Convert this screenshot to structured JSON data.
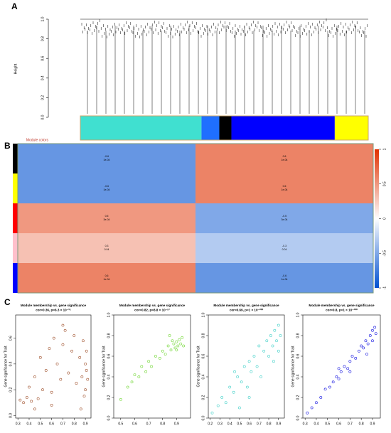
{
  "panel_labels": [
    "A",
    "B",
    "C"
  ],
  "chart_data": [
    {
      "type": "dendrogram",
      "ylabel": "Height",
      "color_label": "Module colors",
      "ylim": [
        0,
        1
      ],
      "yticks": [
        {
          "value": 0,
          "label": "0.0"
        },
        0.2,
        0.4,
        0.6,
        0.8,
        {
          "value": 1,
          "label": "1.0"
        }
      ],
      "modules": [
        {
          "color": "#40e0d0",
          "size": 850
        },
        {
          "color": "#1f6fff",
          "size": 125
        },
        {
          "color": "#000000",
          "size": 85
        },
        {
          "color": "#0000ff",
          "size": 725
        },
        {
          "color": "#ffff00",
          "size": 235
        }
      ]
    },
    {
      "type": "heatmap",
      "row_colors": [
        "#000000",
        "#ffff00",
        "#ff0000",
        "#ffc0cb",
        "#0000ff"
      ],
      "values": [
        [
          -0.6,
          0.6
        ],
        [
          -0.6,
          0.6
        ],
        [
          0.5,
          -0.5
        ],
        [
          0.3,
          -0.3
        ],
        [
          0.6,
          -0.6
        ]
      ],
      "p_labels": [
        [
          "1e-04",
          "1e-04"
        ],
        [
          "1e-04",
          "1e-04"
        ],
        [
          "3e-04",
          "3e-04"
        ],
        [
          "0.04",
          "0.04"
        ],
        [
          "1e-04",
          "1e-04"
        ]
      ],
      "colorscale": [
        "#0050d0",
        "#ffffff",
        "#e03000"
      ],
      "clim": [
        -1,
        1
      ],
      "cticks": [
        1,
        0.5,
        0,
        -0.5,
        -1
      ]
    },
    {
      "type": "scatter",
      "title": "Module membership vs. gene significance",
      "subtitle": "cor=0.36, p=6.3 × 10⁻³⁶",
      "ylabel": "Gene significance for Trait",
      "color": "#a0522d",
      "xlim": [
        0.28,
        0.95
      ],
      "ylim": [
        -0.02,
        0.78
      ],
      "xticks": [
        0.3,
        0.4,
        0.5,
        0.6,
        0.7,
        0.8,
        0.9
      ],
      "yticks": [
        {
          "value": 0,
          "label": "0.0"
        },
        0.2,
        0.4,
        0.6
      ],
      "x": [
        0.32,
        0.35,
        0.38,
        0.4,
        0.42,
        0.45,
        0.48,
        0.5,
        0.52,
        0.55,
        0.58,
        0.6,
        0.62,
        0.65,
        0.68,
        0.7,
        0.72,
        0.75,
        0.78,
        0.8,
        0.82,
        0.85,
        0.87,
        0.88,
        0.9,
        0.9,
        0.91,
        0.92,
        0.91,
        0.89,
        0.86,
        0.6,
        0.45,
        0.7
      ],
      "y": [
        0.12,
        0.1,
        0.14,
        0.22,
        0.11,
        0.3,
        0.13,
        0.45,
        0.2,
        0.35,
        0.52,
        0.18,
        0.6,
        0.4,
        0.28,
        0.55,
        0.66,
        0.33,
        0.5,
        0.62,
        0.25,
        0.45,
        0.3,
        0.58,
        0.4,
        0.2,
        0.35,
        0.28,
        0.5,
        0.15,
        0.05,
        0.08,
        0.05,
        0.7
      ]
    },
    {
      "type": "scatter",
      "title": "Module membership vs. gene significance",
      "subtitle": "cor=0.82, p=8.8 × 10⁻⁵²",
      "ylabel": "Gene significance for Trait",
      "color": "#6fd630",
      "xlim": [
        0.45,
        1.0
      ],
      "ylim": [
        0,
        1.0
      ],
      "xticks": [
        0.5,
        0.6,
        0.7,
        0.8,
        0.9
      ],
      "yticks": [
        {
          "value": 0,
          "label": "0.0"
        },
        0.2,
        0.4,
        0.6,
        0.8,
        {
          "value": 1,
          "label": "1.0"
        }
      ],
      "x": [
        0.5,
        0.55,
        0.58,
        0.6,
        0.63,
        0.65,
        0.68,
        0.7,
        0.72,
        0.75,
        0.78,
        0.8,
        0.82,
        0.84,
        0.86,
        0.88,
        0.89,
        0.9,
        0.91,
        0.92,
        0.93,
        0.94,
        0.9,
        0.87,
        0.85,
        0.95
      ],
      "y": [
        0.18,
        0.3,
        0.35,
        0.42,
        0.4,
        0.5,
        0.45,
        0.55,
        0.5,
        0.6,
        0.58,
        0.65,
        0.62,
        0.7,
        0.66,
        0.72,
        0.68,
        0.74,
        0.7,
        0.76,
        0.72,
        0.78,
        0.66,
        0.75,
        0.8,
        0.7
      ]
    },
    {
      "type": "scatter",
      "title": "Module membership vs. gene significance",
      "subtitle": "cor=0.69, p=1 × 10⁻²⁰⁰",
      "ylabel": "Gene significance for Trait",
      "color": "#40d0c8",
      "xlim": [
        0.18,
        0.96
      ],
      "ylim": [
        0,
        1.0
      ],
      "xticks": [
        0.2,
        0.3,
        0.4,
        0.5,
        0.6,
        0.7,
        0.8,
        0.9
      ],
      "yticks": [
        {
          "value": 0,
          "label": "0.0"
        },
        0.2,
        0.4,
        0.6,
        0.8,
        {
          "value": 1,
          "label": "1.0"
        }
      ],
      "x": [
        0.22,
        0.28,
        0.32,
        0.36,
        0.4,
        0.44,
        0.48,
        0.5,
        0.52,
        0.55,
        0.58,
        0.6,
        0.62,
        0.65,
        0.68,
        0.7,
        0.72,
        0.75,
        0.78,
        0.8,
        0.82,
        0.84,
        0.86,
        0.88,
        0.9,
        0.9,
        0.92,
        0.85,
        0.6,
        0.45
      ],
      "y": [
        0.05,
        0.12,
        0.2,
        0.15,
        0.3,
        0.25,
        0.4,
        0.1,
        0.35,
        0.5,
        0.3,
        0.55,
        0.45,
        0.6,
        0.5,
        0.7,
        0.4,
        0.65,
        0.75,
        0.6,
        0.8,
        0.7,
        0.85,
        0.75,
        0.9,
        0.65,
        0.8,
        0.55,
        0.2,
        0.45
      ]
    },
    {
      "type": "scatter",
      "title": "Module membership vs. gene significance",
      "subtitle": "cor=0.8, p=1 × 10⁻²⁰⁰",
      "ylabel": "Gene significance for Trait",
      "color": "#1010e0",
      "xlim": [
        0.28,
        0.97
      ],
      "ylim": [
        0,
        1.0
      ],
      "xticks": [
        0.3,
        0.4,
        0.5,
        0.6,
        0.7,
        0.8,
        0.9
      ],
      "yticks": [
        {
          "value": 0,
          "label": "0.0"
        },
        0.2,
        0.4,
        0.6,
        0.8,
        {
          "value": 1,
          "label": "1.0"
        }
      ],
      "x": [
        0.32,
        0.36,
        0.4,
        0.44,
        0.48,
        0.52,
        0.55,
        0.58,
        0.6,
        0.62,
        0.65,
        0.68,
        0.7,
        0.72,
        0.75,
        0.78,
        0.8,
        0.82,
        0.84,
        0.86,
        0.88,
        0.9,
        0.92,
        0.93,
        0.9,
        0.85,
        0.7,
        0.6
      ],
      "y": [
        0.05,
        0.1,
        0.15,
        0.2,
        0.28,
        0.3,
        0.35,
        0.4,
        0.38,
        0.45,
        0.5,
        0.48,
        0.55,
        0.6,
        0.58,
        0.65,
        0.7,
        0.68,
        0.75,
        0.72,
        0.8,
        0.85,
        0.88,
        0.82,
        0.75,
        0.62,
        0.45,
        0.48
      ]
    }
  ]
}
